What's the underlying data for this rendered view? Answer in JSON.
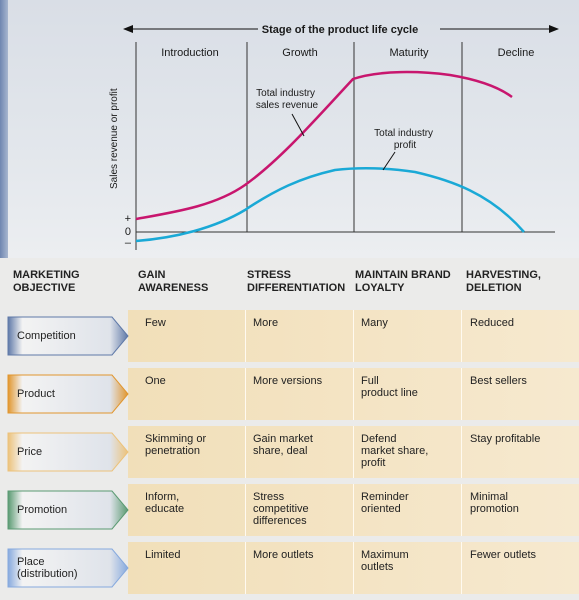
{
  "chart": {
    "stage_label": "Stage of the product life cycle",
    "stages": [
      "Introduction",
      "Growth",
      "Maturity",
      "Decline"
    ],
    "ylabel": "Sales revenue or profit",
    "plus": "+",
    "zero": "0",
    "minus": "–",
    "revenue_label": "Total industry\nsales revenue",
    "profit_label": "Total industry\nprofit",
    "revenue_color": "#c8166e",
    "profit_color": "#1aa9d6"
  },
  "table": {
    "headers": [
      "MARKETING\nOBJECTIVE",
      "GAIN\nAWARENESS",
      "STRESS\nDIFFERENTIATION",
      "MAINTAIN BRAND\nLOYALTY",
      "HARVESTING,\nDELETION"
    ],
    "rows": [
      {
        "label": "Competition",
        "color": "#5f79a8",
        "cells": [
          "Few",
          "More",
          "Many",
          "Reduced"
        ]
      },
      {
        "label": "Product",
        "color": "#e1962e",
        "cells": [
          "One",
          "More versions",
          "Full\nproduct line",
          "Best sellers"
        ]
      },
      {
        "label": "Price",
        "color": "#ecc27a",
        "cells": [
          "Skimming or\npenetration",
          "Gain market\nshare, deal",
          "Defend\nmarket share,\nprofit",
          "Stay profitable"
        ]
      },
      {
        "label": "Promotion",
        "color": "#5a9a72",
        "cells": [
          "Inform,\neducate",
          "Stress\ncompetitive\ndifferences",
          "Reminder\noriented",
          "Minimal\npromotion"
        ]
      },
      {
        "label": "Place\n(distribution)",
        "color": "#86a9de",
        "cells": [
          "Limited",
          "More outlets",
          "Maximum\noutlets",
          "Fewer outlets"
        ]
      }
    ]
  }
}
